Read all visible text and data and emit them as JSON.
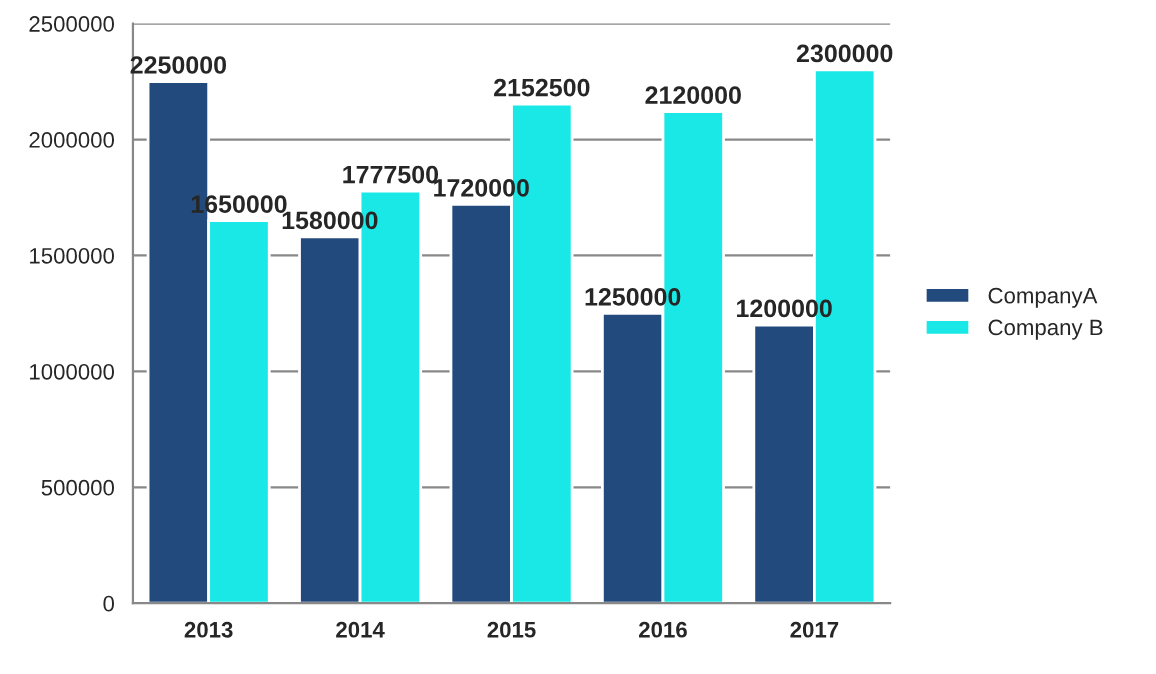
{
  "chart_data": {
    "type": "bar",
    "categories": [
      "2013",
      "2014",
      "2015",
      "2016",
      "2017"
    ],
    "series": [
      {
        "name": "CompanyA",
        "color": "#234a7c",
        "values": [
          2250000,
          1580000,
          1720000,
          1250000,
          1200000
        ]
      },
      {
        "name": "Company B",
        "color": "#1ae8e6",
        "values": [
          1650000,
          1777500,
          2152500,
          2120000,
          2300000
        ]
      }
    ],
    "ylim": [
      0,
      2500000
    ],
    "yticks": [
      0,
      500000,
      1000000,
      1500000,
      2000000,
      2500000
    ],
    "grid": "y",
    "legend": "right",
    "data_labels": true
  }
}
